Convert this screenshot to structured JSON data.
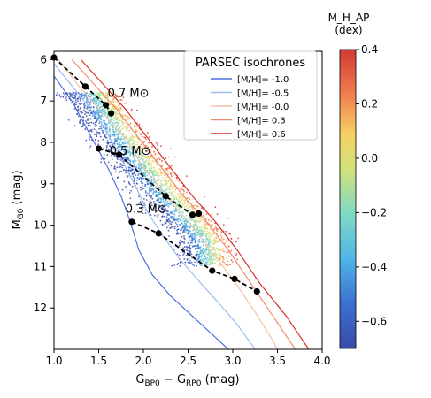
{
  "chart_data": {
    "type": "scatter",
    "xlabel": "G_BP0 − G_RP0 (mag)",
    "ylabel": "M_G0 (mag)",
    "xlim": [
      1.0,
      4.0
    ],
    "ylim": [
      13.0,
      5.8
    ],
    "y_inverted": true,
    "xticks": [
      1.0,
      1.5,
      2.0,
      2.5,
      3.0,
      3.5,
      4.0
    ],
    "yticks": [
      6,
      7,
      8,
      9,
      10,
      11,
      12
    ],
    "grid": false,
    "legend": {
      "title": "PARSEC isochrones",
      "placement": "top-right",
      "entries": [
        {
          "label": "[M/H]= -1.0",
          "color": "#4c6fe0"
        },
        {
          "label": "[M/H]= -0.5",
          "color": "#9bbcf2"
        },
        {
          "label": "[M/H]= -0.0",
          "color": "#f4c2a8"
        },
        {
          "label": "[M/H]= 0.3",
          "color": "#ef8c6c"
        },
        {
          "label": "[M/H]= 0.6",
          "color": "#d8312a"
        }
      ]
    },
    "colorbar": {
      "label_line1": "M_H_AP",
      "label_line2": "(dex)",
      "range": [
        -0.7,
        0.4
      ],
      "ticks": [
        0.4,
        0.2,
        0.0,
        -0.2,
        -0.4,
        -0.6
      ],
      "tick_labels": [
        "0.4",
        "0.2",
        "0.0",
        "−0.2",
        "−0.4",
        "−0.6"
      ]
    },
    "isochrones": [
      {
        "name": "[M/H]= -1.0",
        "color": "#4c6fe0",
        "points": [
          [
            1.0,
            6.4
          ],
          [
            1.2,
            7.0
          ],
          [
            1.4,
            7.8
          ],
          [
            1.6,
            8.6
          ],
          [
            1.75,
            9.3
          ],
          [
            1.85,
            9.9
          ],
          [
            1.95,
            10.6
          ],
          [
            2.1,
            11.2
          ],
          [
            2.3,
            11.7
          ],
          [
            2.55,
            12.2
          ],
          [
            2.75,
            12.6
          ],
          [
            2.95,
            13.0
          ]
        ]
      },
      {
        "name": "[M/H]= -0.5",
        "color": "#9bbcf2",
        "points": [
          [
            1.0,
            6.1
          ],
          [
            1.3,
            6.9
          ],
          [
            1.55,
            7.6
          ],
          [
            1.75,
            8.4
          ],
          [
            1.9,
            9.0
          ],
          [
            2.05,
            9.7
          ],
          [
            2.2,
            10.2
          ],
          [
            2.4,
            10.8
          ],
          [
            2.6,
            11.3
          ],
          [
            2.85,
            11.9
          ],
          [
            3.05,
            12.4
          ],
          [
            3.25,
            13.0
          ]
        ]
      },
      {
        "name": "[M/H]= -0.0",
        "color": "#f4c2a8",
        "points": [
          [
            1.05,
            6.0
          ],
          [
            1.3,
            6.7
          ],
          [
            1.55,
            7.3
          ],
          [
            1.8,
            7.9
          ],
          [
            2.0,
            8.6
          ],
          [
            2.25,
            9.3
          ],
          [
            2.5,
            9.9
          ],
          [
            2.75,
            10.6
          ],
          [
            3.0,
            11.3
          ],
          [
            3.25,
            12.1
          ],
          [
            3.45,
            12.8
          ],
          [
            3.5,
            13.0
          ]
        ]
      },
      {
        "name": "[M/H]= 0.3",
        "color": "#ef8c6c",
        "points": [
          [
            1.2,
            6.0
          ],
          [
            1.45,
            6.6
          ],
          [
            1.7,
            7.2
          ],
          [
            1.95,
            7.9
          ],
          [
            2.2,
            8.6
          ],
          [
            2.45,
            9.3
          ],
          [
            2.7,
            9.9
          ],
          [
            2.95,
            10.6
          ],
          [
            3.2,
            11.4
          ],
          [
            3.45,
            12.2
          ],
          [
            3.7,
            13.0
          ]
        ]
      },
      {
        "name": "[M/H]= 0.6",
        "color": "#d8312a",
        "points": [
          [
            1.3,
            6.0
          ],
          [
            1.55,
            6.6
          ],
          [
            1.8,
            7.2
          ],
          [
            2.05,
            7.9
          ],
          [
            2.3,
            8.6
          ],
          [
            2.55,
            9.3
          ],
          [
            2.8,
            9.9
          ],
          [
            3.05,
            10.6
          ],
          [
            3.3,
            11.4
          ],
          [
            3.6,
            12.2
          ],
          [
            3.85,
            13.0
          ]
        ]
      }
    ],
    "mass_tracks": [
      {
        "label": "0.7 M⊙",
        "label_pos": [
          1.6,
          6.9
        ],
        "points": [
          [
            1.0,
            5.95
          ],
          [
            1.35,
            6.65
          ],
          [
            1.58,
            7.1
          ],
          [
            1.64,
            7.3
          ]
        ]
      },
      {
        "label": "0.5 M⊙",
        "label_pos": [
          1.62,
          8.3
        ],
        "points": [
          [
            1.5,
            8.15
          ],
          [
            1.73,
            8.3
          ],
          [
            2.25,
            9.3
          ],
          [
            2.55,
            9.75
          ],
          [
            2.62,
            9.72
          ]
        ]
      },
      {
        "label": "0.3 M⊙",
        "label_pos": [
          1.8,
          9.7
        ],
        "points": [
          [
            1.87,
            9.92
          ],
          [
            2.17,
            10.2
          ],
          [
            2.77,
            11.1
          ],
          [
            3.02,
            11.3
          ],
          [
            3.27,
            11.6
          ]
        ]
      }
    ],
    "scatter_summary": {
      "description": "Gaia field stars colored by M_H_AP along main sequence",
      "ridge": [
        [
          1.45,
          7.0
        ],
        [
          1.7,
          7.8
        ],
        [
          1.95,
          8.5
        ],
        [
          2.2,
          9.2
        ],
        [
          2.45,
          9.8
        ],
        [
          2.7,
          10.4
        ]
      ]
    }
  }
}
